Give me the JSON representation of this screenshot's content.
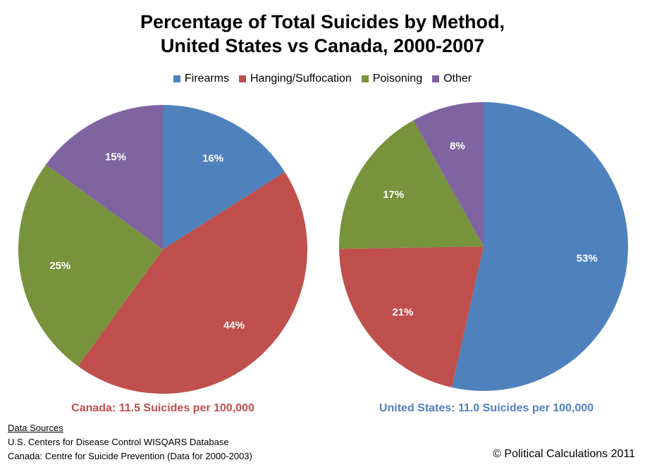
{
  "chart_data": {
    "type": "pie",
    "title": "Percentage of Total Suicides by Method,",
    "subtitle": "United States vs Canada, 2000-2007",
    "legend": {
      "placement": "top",
      "entries": [
        "Firearms",
        "Hanging/Suffocation",
        "Poisoning",
        "Other"
      ]
    },
    "colors": [
      "#4F81BD",
      "#C0504D",
      "#77933C",
      "#8064A2"
    ],
    "pies": [
      {
        "name": "Canada",
        "values": [
          16,
          44,
          25,
          15
        ],
        "labels": [
          "16%",
          "44%",
          "25%",
          "15%"
        ],
        "caption": "Canada: 11.5 Suicides per 100,000",
        "caption_color": "#C0504D"
      },
      {
        "name": "United States",
        "values": [
          53,
          21,
          17,
          8
        ],
        "labels": [
          "53%",
          "21%",
          "17%",
          "8%"
        ],
        "caption": "United States: 11.0 Suicides per 100,000",
        "caption_color": "#4F81BD"
      }
    ]
  },
  "sources": {
    "heading": "Data Sources",
    "lines": [
      "U.S. Centers for Disease Control WISQARS Database",
      "Canada: Centre for Suicide Prevention (Data for 2000-2003)"
    ]
  },
  "copyright": "© Political Calculations 2011"
}
